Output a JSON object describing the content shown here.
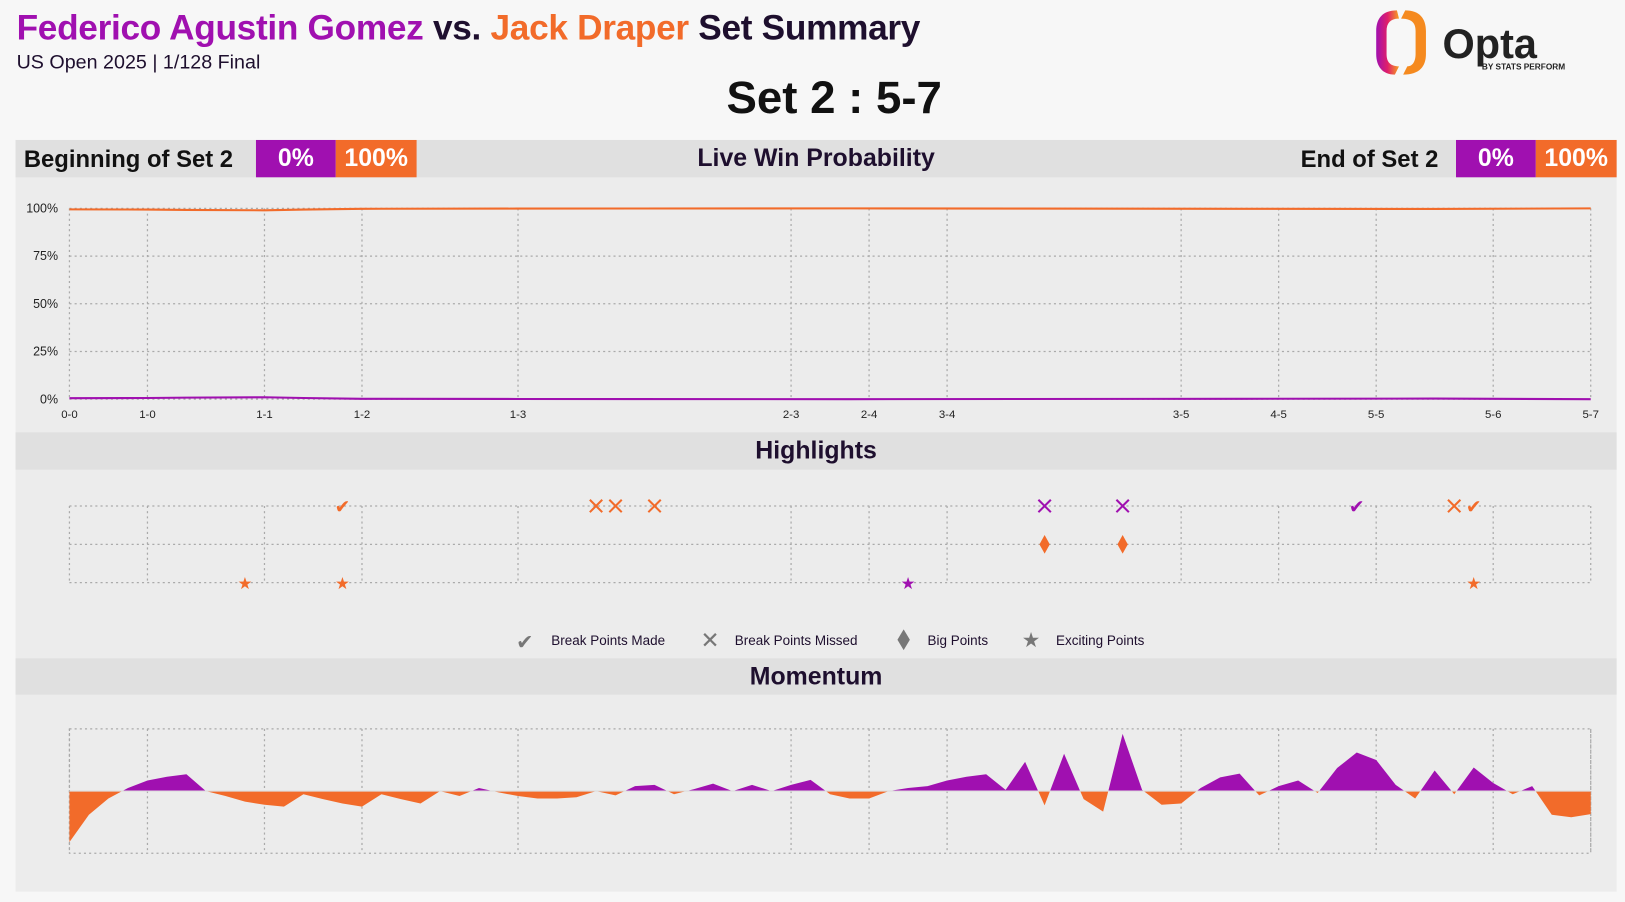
{
  "header": {
    "player1": "Federico Agustin Gomez",
    "vs": " vs. ",
    "player2": "Jack Draper",
    "suffix": " Set Summary",
    "subtitle": "US Open 2025 | 1/128 Final",
    "set_score": "Set 2 : 5-7"
  },
  "logo": {
    "text": "Opta",
    "tagline": "BY STATS PERFORM"
  },
  "colors": {
    "player1": "#a010b0",
    "player2": "#f26b2a",
    "text": "#1e0f2e"
  },
  "win_prob": {
    "title": "Live Win Probability",
    "begin_label": "Beginning of Set 2",
    "begin_p1": "0%",
    "begin_p2": "100%",
    "end_label": "End of Set 2",
    "end_p1": "0%",
    "end_p2": "100%"
  },
  "highlights": {
    "title": "Highlights",
    "legend": [
      {
        "icon": "check-icon",
        "label": "Break Points Made"
      },
      {
        "icon": "cross-icon",
        "label": "Break Points Missed"
      },
      {
        "icon": "diamond-icon",
        "label": "Big Points"
      },
      {
        "icon": "star-icon",
        "label": "Exciting Points"
      }
    ]
  },
  "momentum": {
    "title": "Momentum"
  },
  "chart_data": [
    {
      "type": "line",
      "title": "Live Win Probability",
      "y_ticks": [
        "100%",
        "75%",
        "50%",
        "25%",
        "0%"
      ],
      "ylim": [
        0,
        100
      ],
      "x_ticks": [
        {
          "label": "0-0",
          "point": 0
        },
        {
          "label": "1-0",
          "point": 4
        },
        {
          "label": "1-1",
          "point": 10
        },
        {
          "label": "1-2",
          "point": 15
        },
        {
          "label": "1-3",
          "point": 23
        },
        {
          "label": "2-3",
          "point": 37
        },
        {
          "label": "2-4",
          "point": 41
        },
        {
          "label": "3-4",
          "point": 45
        },
        {
          "label": "3-5",
          "point": 57
        },
        {
          "label": "4-5",
          "point": 62
        },
        {
          "label": "5-5",
          "point": 67
        },
        {
          "label": "5-6",
          "point": 73
        },
        {
          "label": "5-7",
          "point": 78
        }
      ],
      "xlim": [
        0,
        78
      ],
      "grid": true,
      "series": [
        {
          "player": "player1",
          "points": [
            [
              0,
              0.5
            ],
            [
              4,
              0.6
            ],
            [
              6,
              0.8
            ],
            [
              10,
              1
            ],
            [
              12,
              0.6
            ],
            [
              15,
              0.2
            ],
            [
              23,
              0.1
            ],
            [
              40,
              0
            ],
            [
              60,
              0.2
            ],
            [
              70,
              0.3
            ],
            [
              78,
              0
            ]
          ]
        },
        {
          "player": "player2",
          "points": [
            [
              0,
              99.5
            ],
            [
              4,
              99.4
            ],
            [
              6,
              99.2
            ],
            [
              10,
              99
            ],
            [
              12,
              99.4
            ],
            [
              15,
              99.8
            ],
            [
              23,
              99.9
            ],
            [
              40,
              100
            ],
            [
              60,
              99.8
            ],
            [
              70,
              99.7
            ],
            [
              78,
              100
            ]
          ]
        }
      ]
    },
    {
      "type": "scatter",
      "title": "Highlights",
      "rows": [
        "Break Points",
        "Big Points",
        "Exciting Points"
      ],
      "events": [
        {
          "point": 14,
          "kind": "break_made",
          "player": "player2"
        },
        {
          "point": 27,
          "kind": "break_missed",
          "player": "player2"
        },
        {
          "point": 28,
          "kind": "break_missed",
          "player": "player2"
        },
        {
          "point": 30,
          "kind": "break_missed",
          "player": "player2"
        },
        {
          "point": 50,
          "kind": "break_missed",
          "player": "player1"
        },
        {
          "point": 54,
          "kind": "break_missed",
          "player": "player1"
        },
        {
          "point": 66,
          "kind": "break_made",
          "player": "player1"
        },
        {
          "point": 71,
          "kind": "break_missed",
          "player": "player2"
        },
        {
          "point": 72,
          "kind": "break_made",
          "player": "player2"
        },
        {
          "point": 50,
          "kind": "big",
          "player": "player2"
        },
        {
          "point": 54,
          "kind": "big",
          "player": "player2"
        },
        {
          "point": 9,
          "kind": "exciting",
          "player": "player2"
        },
        {
          "point": 14,
          "kind": "exciting",
          "player": "player2"
        },
        {
          "point": 43,
          "kind": "exciting",
          "player": "player1"
        },
        {
          "point": 72,
          "kind": "exciting",
          "player": "player2"
        }
      ]
    },
    {
      "type": "area",
      "title": "Momentum",
      "note_sign": "positive = player1, negative = player2",
      "ylim": [
        -1,
        1
      ],
      "values": [
        -0.82,
        -0.38,
        -0.12,
        0.05,
        0.17,
        0.23,
        0.27,
        0,
        -0.08,
        -0.17,
        -0.22,
        -0.25,
        -0.05,
        -0.13,
        -0.2,
        -0.25,
        -0.05,
        -0.13,
        -0.2,
        0,
        -0.08,
        0.05,
        -0.02,
        -0.08,
        -0.12,
        -0.12,
        -0.1,
        0,
        -0.07,
        0.08,
        0.1,
        -0.05,
        0.03,
        0.12,
        0,
        0.1,
        0,
        0.1,
        0.18,
        -0.05,
        -0.12,
        -0.12,
        0,
        0.05,
        0.08,
        0.17,
        0.23,
        0.27,
        0.02,
        0.47,
        -0.23,
        0.6,
        -0.13,
        -0.33,
        0.92,
        0.02,
        -0.22,
        -0.2,
        0.05,
        0.22,
        0.28,
        -0.07,
        0.08,
        0.17,
        -0.03,
        0.37,
        0.62,
        0.5,
        0.1,
        -0.12,
        0.33,
        -0.05,
        0.38,
        0.13,
        -0.05,
        0.08,
        -0.38,
        -0.42,
        -0.37
      ]
    }
  ]
}
